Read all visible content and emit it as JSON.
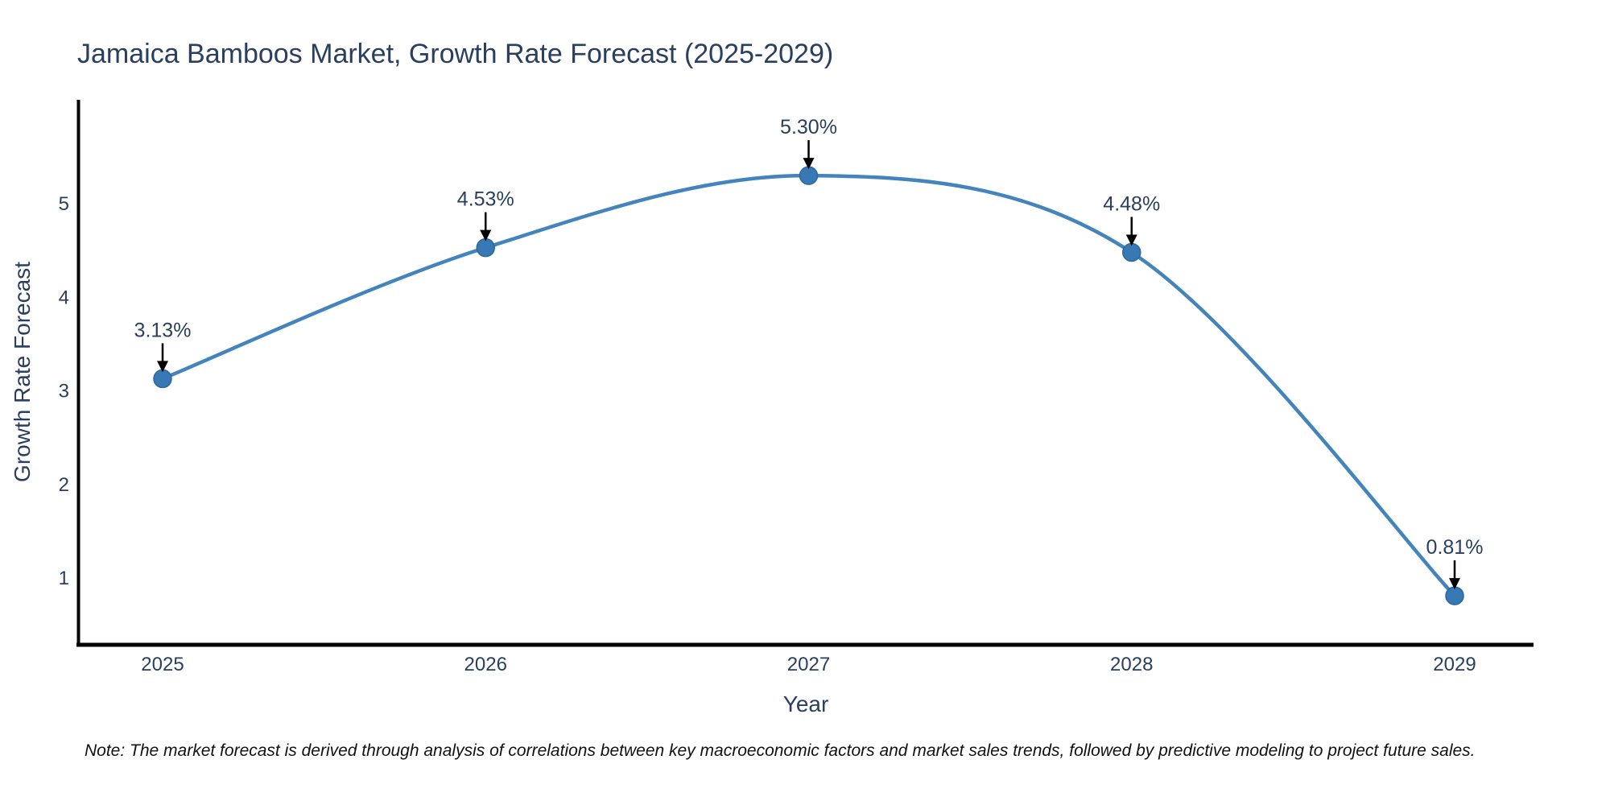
{
  "title": "Jamaica Bamboos Market, Growth Rate Forecast (2025-2029)",
  "note": "Note: The market forecast is derived through analysis of correlations between key macroeconomic factors and market sales trends, followed by predictive modeling to project future sales.",
  "chart_data": {
    "type": "line",
    "title": "Jamaica Bamboos Market, Growth Rate Forecast (2025-2029)",
    "xlabel": "Year",
    "ylabel": "Growth Rate Forecast",
    "x": [
      2025,
      2026,
      2027,
      2028,
      2029
    ],
    "values": [
      3.13,
      4.53,
      5.3,
      4.48,
      0.81
    ],
    "point_labels": [
      "3.13%",
      "4.53%",
      "5.30%",
      "4.48%",
      "0.81%"
    ],
    "x_tick_labels": [
      "2025",
      "2026",
      "2027",
      "2028",
      "2029"
    ],
    "y_ticks": [
      1,
      2,
      3,
      4,
      5
    ],
    "ylim": [
      0.27,
      6.1
    ],
    "xlim": [
      2024.74,
      2029.24
    ],
    "grid": false,
    "legend_position": "none",
    "line_shape": "spline",
    "annotation_arrows": true,
    "colors": {
      "line": "#4384bd",
      "marker": "#3878b4",
      "marker_edge": "#2d679f",
      "arrow": "#000000",
      "chart_text": "#2a3f5f",
      "axis_line": "#000000",
      "note_text": "#111111",
      "background": "#ffffff"
    }
  }
}
